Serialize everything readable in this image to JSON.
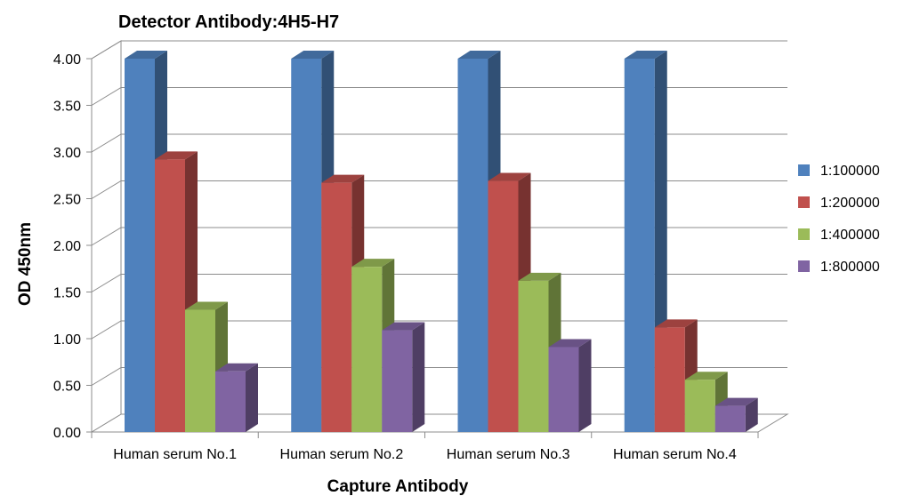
{
  "chart_data": {
    "type": "bar",
    "title": "Detector Antibody:4H5-H7",
    "xlabel": "Capture Antibody",
    "ylabel": "OD 450nm",
    "ylim": [
      0,
      4
    ],
    "yticks": [
      "0.00",
      "0.50",
      "1.00",
      "1.50",
      "2.00",
      "2.50",
      "3.00",
      "3.50",
      "4.00"
    ],
    "categories": [
      "Human serum No.1",
      "Human serum No.2",
      "Human serum No.3",
      "Human serum No.4"
    ],
    "series": [
      {
        "name": "1:100000",
        "color": "#4F81BD",
        "values": [
          4.0,
          4.0,
          4.0,
          4.0
        ]
      },
      {
        "name": "1:200000",
        "color": "#C0504D",
        "values": [
          2.92,
          2.67,
          2.69,
          1.12
        ]
      },
      {
        "name": "1:400000",
        "color": "#9BBB59",
        "values": [
          1.31,
          1.77,
          1.62,
          0.56
        ]
      },
      {
        "name": "1:800000",
        "color": "#8064A2",
        "values": [
          0.65,
          1.09,
          0.91,
          0.28
        ]
      }
    ],
    "grid": true,
    "legend_position": "right",
    "style": "3d-column"
  }
}
